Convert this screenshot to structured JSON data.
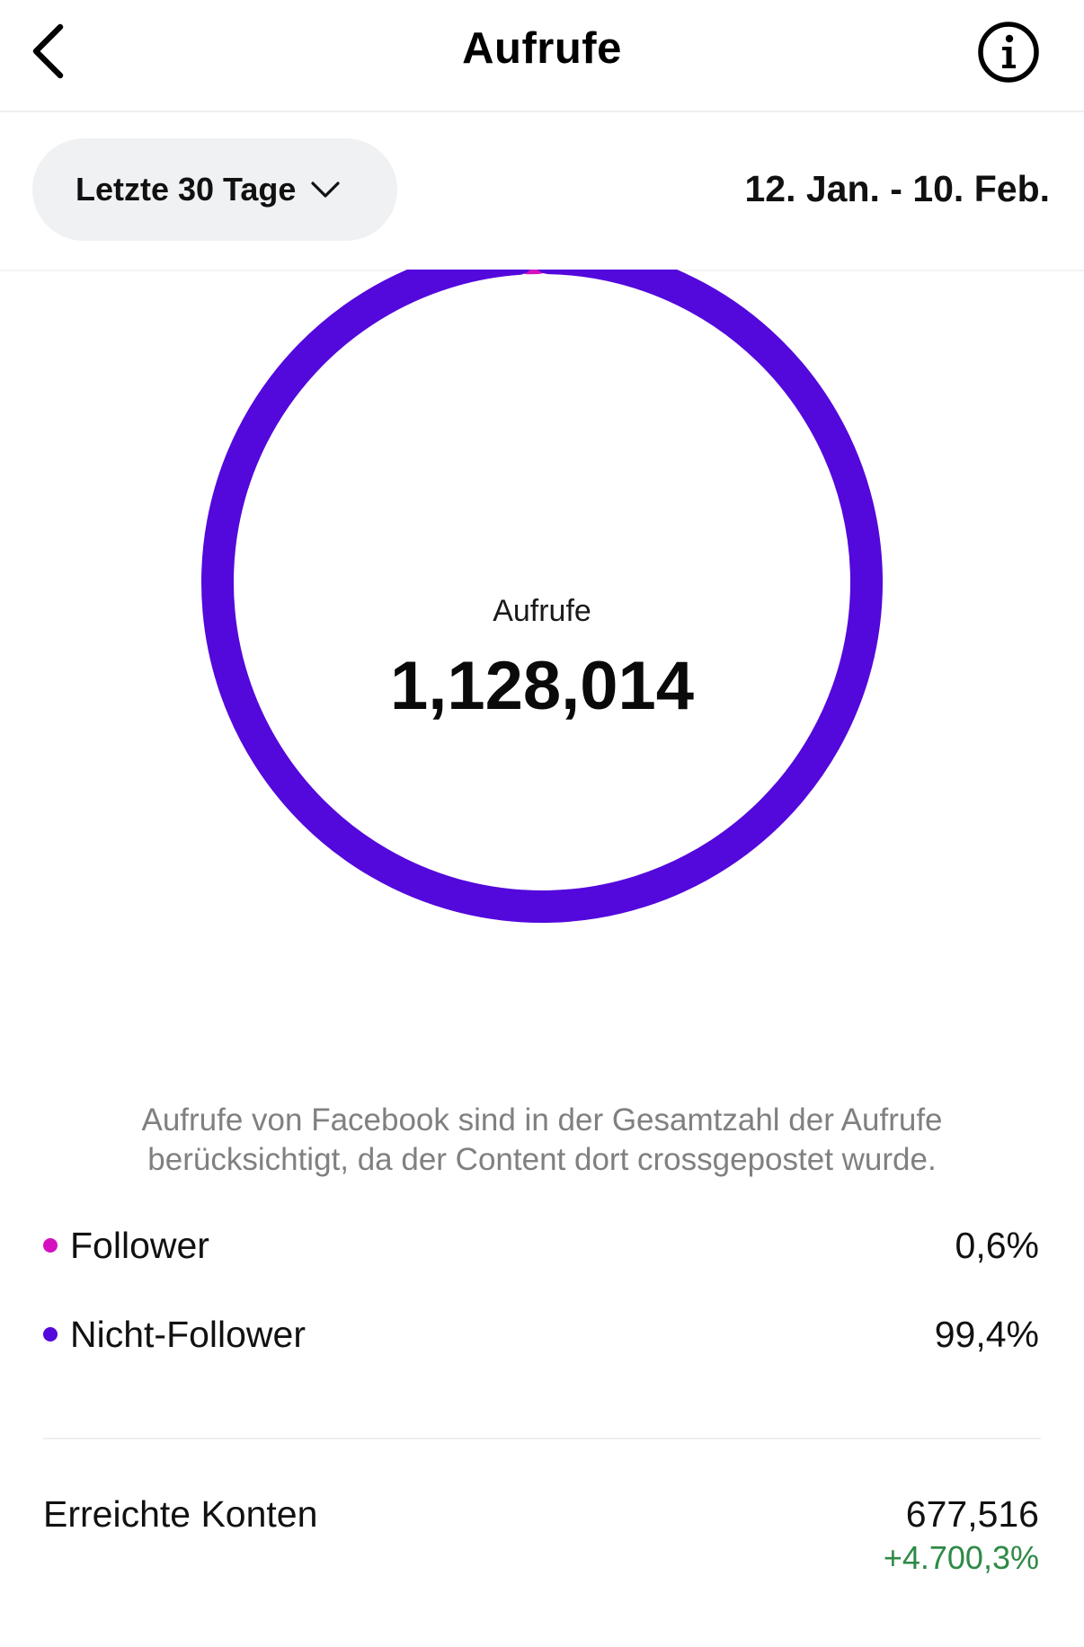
{
  "header": {
    "title": "Aufrufe",
    "back_icon": "chevron-left-icon",
    "info_icon": "info-icon"
  },
  "filter": {
    "range_label": "Letzte 30 Tage",
    "dropdown_icon": "chevron-down-icon",
    "date_range": "12. Jan. - 10. Feb."
  },
  "summary": {
    "label": "Aufrufe",
    "value": "1,128,014"
  },
  "colors": {
    "follower": "#d411c0",
    "non_follower": "#5308dc",
    "positive_change": "#2e8a47"
  },
  "chart_data": {
    "type": "pie",
    "categories": [
      "Follower",
      "Nicht-Follower"
    ],
    "values": [
      0.6,
      99.4
    ]
  },
  "note": "Aufrufe von Facebook sind in der Gesamtzahl der Aufrufe berücksichtigt, da der Content dort crossgepostet wurde.",
  "legend": [
    {
      "label": "Follower",
      "value": "0,6%",
      "color": "#d411c0"
    },
    {
      "label": "Nicht-Follower",
      "value": "99,4%",
      "color": "#5308dc"
    }
  ],
  "reach": {
    "label": "Erreichte Konten",
    "value": "677,516",
    "change": "+4.700,3%"
  }
}
